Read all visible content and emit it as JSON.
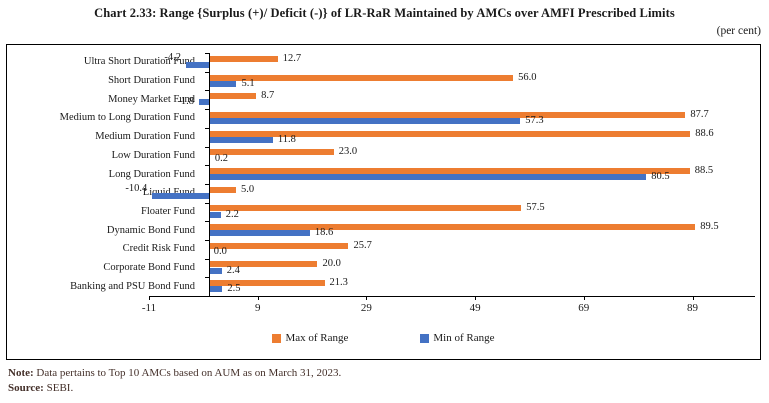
{
  "header": {
    "title": "Chart 2.33: Range {Surplus (+)/ Deficit (-)} of LR-RaR Maintained by AMCs over AMFI Prescribed Limits",
    "unit_label": "(per cent)"
  },
  "chart_data": {
    "type": "bar",
    "orientation": "horizontal",
    "title": "Chart 2.33: Range {Surplus (+)/ Deficit (-)} of LR-RaR Maintained by AMCs over AMFI Prescribed Limits",
    "unit": "per cent",
    "categories": [
      "Ultra Short Duration Fund",
      "Short Duration Fund",
      "Money Market Fund",
      "Medium to Long Duration Fund",
      "Medium Duration Fund",
      "Low Duration Fund",
      "Long Duration Fund",
      "Liquid Fund",
      "Floater Fund",
      "Dynamic Bond Fund",
      "Credit Risk Fund",
      "Corporate Bond Fund",
      "Banking and PSU Bond Fund"
    ],
    "series": [
      {
        "name": "Max of Range",
        "color": "#ED7D31",
        "values": [
          12.7,
          56.0,
          8.7,
          87.7,
          88.6,
          23.0,
          88.5,
          5.0,
          57.5,
          89.5,
          25.7,
          20.0,
          21.3
        ]
      },
      {
        "name": "Min of Range",
        "color": "#4472C4",
        "values": [
          -4.2,
          5.1,
          -1.8,
          57.3,
          11.8,
          0.2,
          80.5,
          -10.4,
          2.2,
          18.6,
          0.0,
          2.4,
          2.5
        ]
      }
    ],
    "x_ticks": [
      -11,
      9,
      29,
      49,
      69,
      89
    ],
    "xlim": [
      -11,
      100.5
    ],
    "grid": false,
    "value_labels": true,
    "value_label_decimals": 1,
    "legend_position": "bottom"
  },
  "footer": {
    "note_label": "Note:",
    "note_text": " Data pertains to Top 10 AMCs based on AUM as on March 31, 2023.",
    "source_label": "Source:",
    "source_text": " SEBI."
  }
}
